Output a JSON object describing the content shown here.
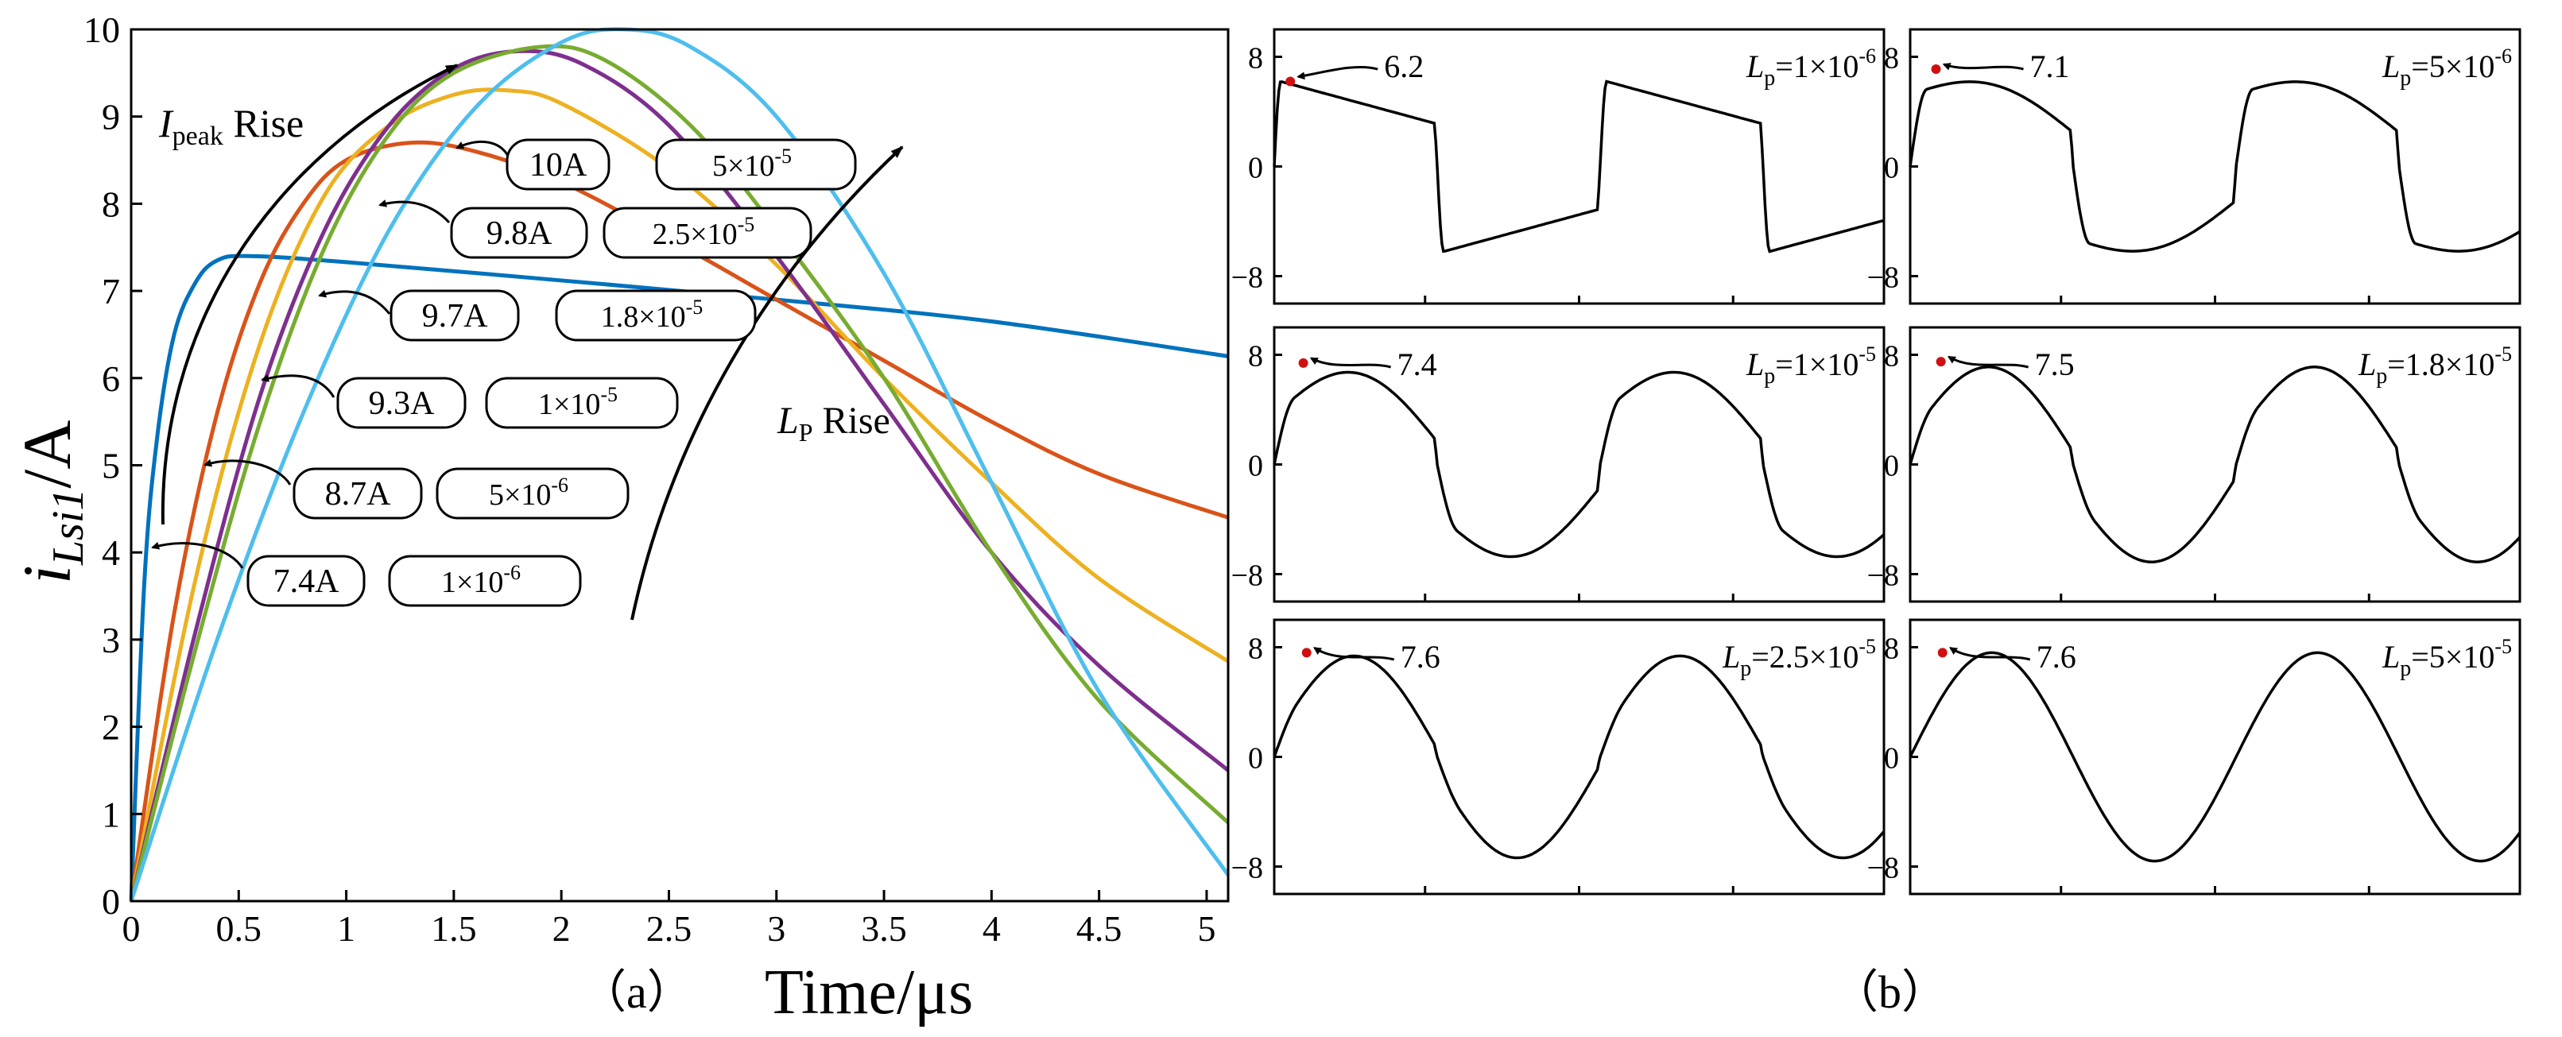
{
  "chart_data": [
    {
      "panel": "a",
      "type": "line",
      "caption": "（a）",
      "xlabel": "Time/μs",
      "ylabel_main": "i",
      "ylabel_sub": "Lsi1",
      "ylabel_unit": "/A",
      "xlim": [
        0,
        5.1
      ],
      "ylim": [
        0,
        10
      ],
      "xticks": [
        "0",
        "0.5",
        "1",
        "1.5",
        "2",
        "2.5",
        "3",
        "3.5",
        "4",
        "4.5",
        "5"
      ],
      "yticks": [
        "0",
        "1",
        "2",
        "3",
        "4",
        "5",
        "6",
        "7",
        "8",
        "9",
        "10"
      ],
      "series": [
        {
          "name": "Lp=1×10^-6",
          "color": "#0072BD",
          "points": [
            [
              0,
              0
            ],
            [
              0.06,
              3.6
            ],
            [
              0.12,
              5.3
            ],
            [
              0.2,
              6.5
            ],
            [
              0.3,
              7.1
            ],
            [
              0.4,
              7.35
            ],
            [
              0.55,
              7.4
            ],
            [
              1,
              7.33
            ],
            [
              2,
              7.12
            ],
            [
              3,
              6.9
            ],
            [
              4,
              6.65
            ],
            [
              5.1,
              6.25
            ]
          ]
        },
        {
          "name": "Lp=5×10^-6",
          "color": "#D95319",
          "points": [
            [
              0,
              0
            ],
            [
              0.2,
              3.3
            ],
            [
              0.4,
              5.6
            ],
            [
              0.6,
              7.1
            ],
            [
              0.8,
              8.0
            ],
            [
              1.0,
              8.5
            ],
            [
              1.3,
              8.7
            ],
            [
              1.6,
              8.6
            ],
            [
              2,
              8.25
            ],
            [
              2.5,
              7.6
            ],
            [
              3,
              6.9
            ],
            [
              3.5,
              6.2
            ],
            [
              4,
              5.5
            ],
            [
              4.5,
              4.9
            ],
            [
              5.1,
              4.4
            ]
          ]
        },
        {
          "name": "Lp=1×10^-5",
          "color": "#EDB120",
          "points": [
            [
              0,
              0
            ],
            [
              0.3,
              3.7
            ],
            [
              0.6,
              6.4
            ],
            [
              0.9,
              8.1
            ],
            [
              1.2,
              8.9
            ],
            [
              1.5,
              9.25
            ],
            [
              1.75,
              9.3
            ],
            [
              2,
              9.15
            ],
            [
              2.5,
              8.4
            ],
            [
              3,
              7.3
            ],
            [
              3.5,
              6.0
            ],
            [
              4,
              4.8
            ],
            [
              4.5,
              3.7
            ],
            [
              5.1,
              2.75
            ]
          ]
        },
        {
          "name": "Lp=1.8×10^-5",
          "color": "#7E2F8E",
          "points": [
            [
              0,
              0
            ],
            [
              0.3,
              3.1
            ],
            [
              0.6,
              5.8
            ],
            [
              0.9,
              7.7
            ],
            [
              1.2,
              8.9
            ],
            [
              1.5,
              9.55
            ],
            [
              1.8,
              9.75
            ],
            [
              2.1,
              9.6
            ],
            [
              2.5,
              8.9
            ],
            [
              3,
              7.4
            ],
            [
              3.5,
              5.7
            ],
            [
              4,
              4.0
            ],
            [
              4.5,
              2.7
            ],
            [
              5.1,
              1.5
            ]
          ]
        },
        {
          "name": "Lp=2.5×10^-5",
          "color": "#77AC30",
          "points": [
            [
              0,
              0
            ],
            [
              0.3,
              2.9
            ],
            [
              0.6,
              5.5
            ],
            [
              0.9,
              7.5
            ],
            [
              1.2,
              8.8
            ],
            [
              1.5,
              9.5
            ],
            [
              1.9,
              9.8
            ],
            [
              2.2,
              9.65
            ],
            [
              2.6,
              8.9
            ],
            [
              3,
              7.7
            ],
            [
              3.5,
              6.0
            ],
            [
              4,
              4.0
            ],
            [
              4.5,
              2.3
            ],
            [
              5.1,
              0.9
            ]
          ]
        },
        {
          "name": "Lp=5×10^-5",
          "color": "#4DBEEE",
          "points": [
            [
              0,
              0
            ],
            [
              0.4,
              3.0
            ],
            [
              0.8,
              5.6
            ],
            [
              1.2,
              7.7
            ],
            [
              1.6,
              9.1
            ],
            [
              2,
              9.85
            ],
            [
              2.3,
              10.0
            ],
            [
              2.6,
              9.8
            ],
            [
              3,
              9.0
            ],
            [
              3.5,
              7.2
            ],
            [
              4,
              4.8
            ],
            [
              4.5,
              2.4
            ],
            [
              5.1,
              0.3
            ]
          ]
        }
      ],
      "annotations": {
        "peaks": [
          "7.4A",
          "8.7A",
          "9.3A",
          "9.7A",
          "9.8A",
          "10A"
        ],
        "inductances": [
          "1×10",
          "5×10",
          "1×10",
          "1.8×10",
          "2.5×10",
          "5×10"
        ],
        "inductance_exponents": [
          "-6",
          "-6",
          "-5",
          "-5",
          "-5",
          "-5"
        ],
        "ipeak_rise": [
          "I",
          "peak",
          " Rise"
        ],
        "lp_rise": [
          "L",
          "P",
          " Rise"
        ]
      }
    },
    {
      "panel": "b",
      "type": "line",
      "caption": "（b）",
      "ylim": [
        -10,
        10
      ],
      "yticks": [
        "8",
        "0",
        "−8"
      ],
      "subplots": [
        {
          "label_base": "=1×10",
          "exp": "-6",
          "peak": "6.2"
        },
        {
          "label_base": "=5×10",
          "exp": "-6",
          "peak": "7.1"
        },
        {
          "label_base": "=1×10",
          "exp": "-5",
          "peak": "7.4"
        },
        {
          "label_base": "=1.8×10",
          "exp": "-5",
          "peak": "7.5"
        },
        {
          "label_base": "=2.5×10",
          "exp": "-5",
          "peak": "7.6"
        },
        {
          "label_base": "=5×10",
          "exp": "-5",
          "peak": "7.6"
        }
      ],
      "lp_symbol": "L",
      "lp_sub": "p",
      "marker_color": "#D01010"
    }
  ]
}
